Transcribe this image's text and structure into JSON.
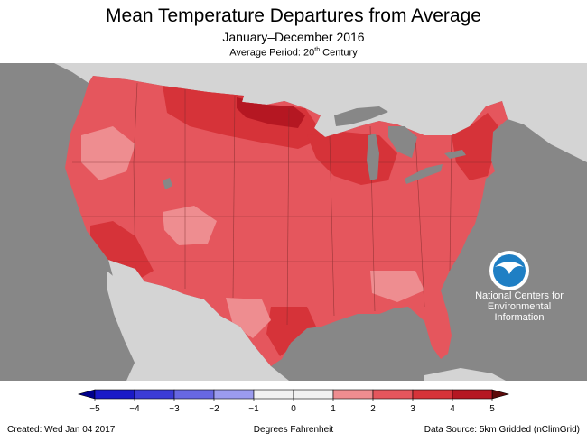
{
  "header": {
    "title": "Mean Temperature Departures from Average",
    "subtitle": "January–December 2016",
    "period_prefix": "Average Period: 20",
    "period_sup": "th",
    "period_suffix": " Century"
  },
  "logo": {
    "text": "NOAA",
    "name_line1": "National Centers for",
    "name_line2": "Environmental",
    "name_line3": "Information"
  },
  "colors": {
    "ocean": "#878787",
    "land_other": "#d4d4d4",
    "lakes": "#878787",
    "us_base": "#e5565d",
    "warm_4": "#d63339",
    "warm_5": "#b51722",
    "cool_2": "#ee8d90",
    "noaa_blue": "#1f7fc4"
  },
  "legend": {
    "bins": [
      {
        "from": -5,
        "to": -4,
        "color": "#1a1ac8"
      },
      {
        "from": -4,
        "to": -3,
        "color": "#3b3bd6"
      },
      {
        "from": -3,
        "to": -2,
        "color": "#6767e2"
      },
      {
        "from": -2,
        "to": -1,
        "color": "#9b9bee"
      },
      {
        "from": -1,
        "to": 0,
        "color": "#f1f1f1"
      },
      {
        "from": 0,
        "to": 1,
        "color": "#f1f1f1"
      },
      {
        "from": 1,
        "to": 2,
        "color": "#ee8d90"
      },
      {
        "from": 2,
        "to": 3,
        "color": "#e5565d"
      },
      {
        "from": 3,
        "to": 4,
        "color": "#d63339"
      },
      {
        "from": 4,
        "to": 5,
        "color": "#b51722"
      }
    ],
    "low_arrow_color": "#00008c",
    "high_arrow_color": "#5c0a0a",
    "ticks": [
      "−5",
      "−4",
      "−3",
      "−2",
      "−1",
      "0",
      "1",
      "2",
      "3",
      "4",
      "5"
    ],
    "min": -5,
    "max": 5
  },
  "footer": {
    "created": "Created: Wed Jan 04 2017",
    "units": "Degrees Fahrenheit",
    "source": "Data Source: 5km Gridded (nClimGrid)"
  }
}
